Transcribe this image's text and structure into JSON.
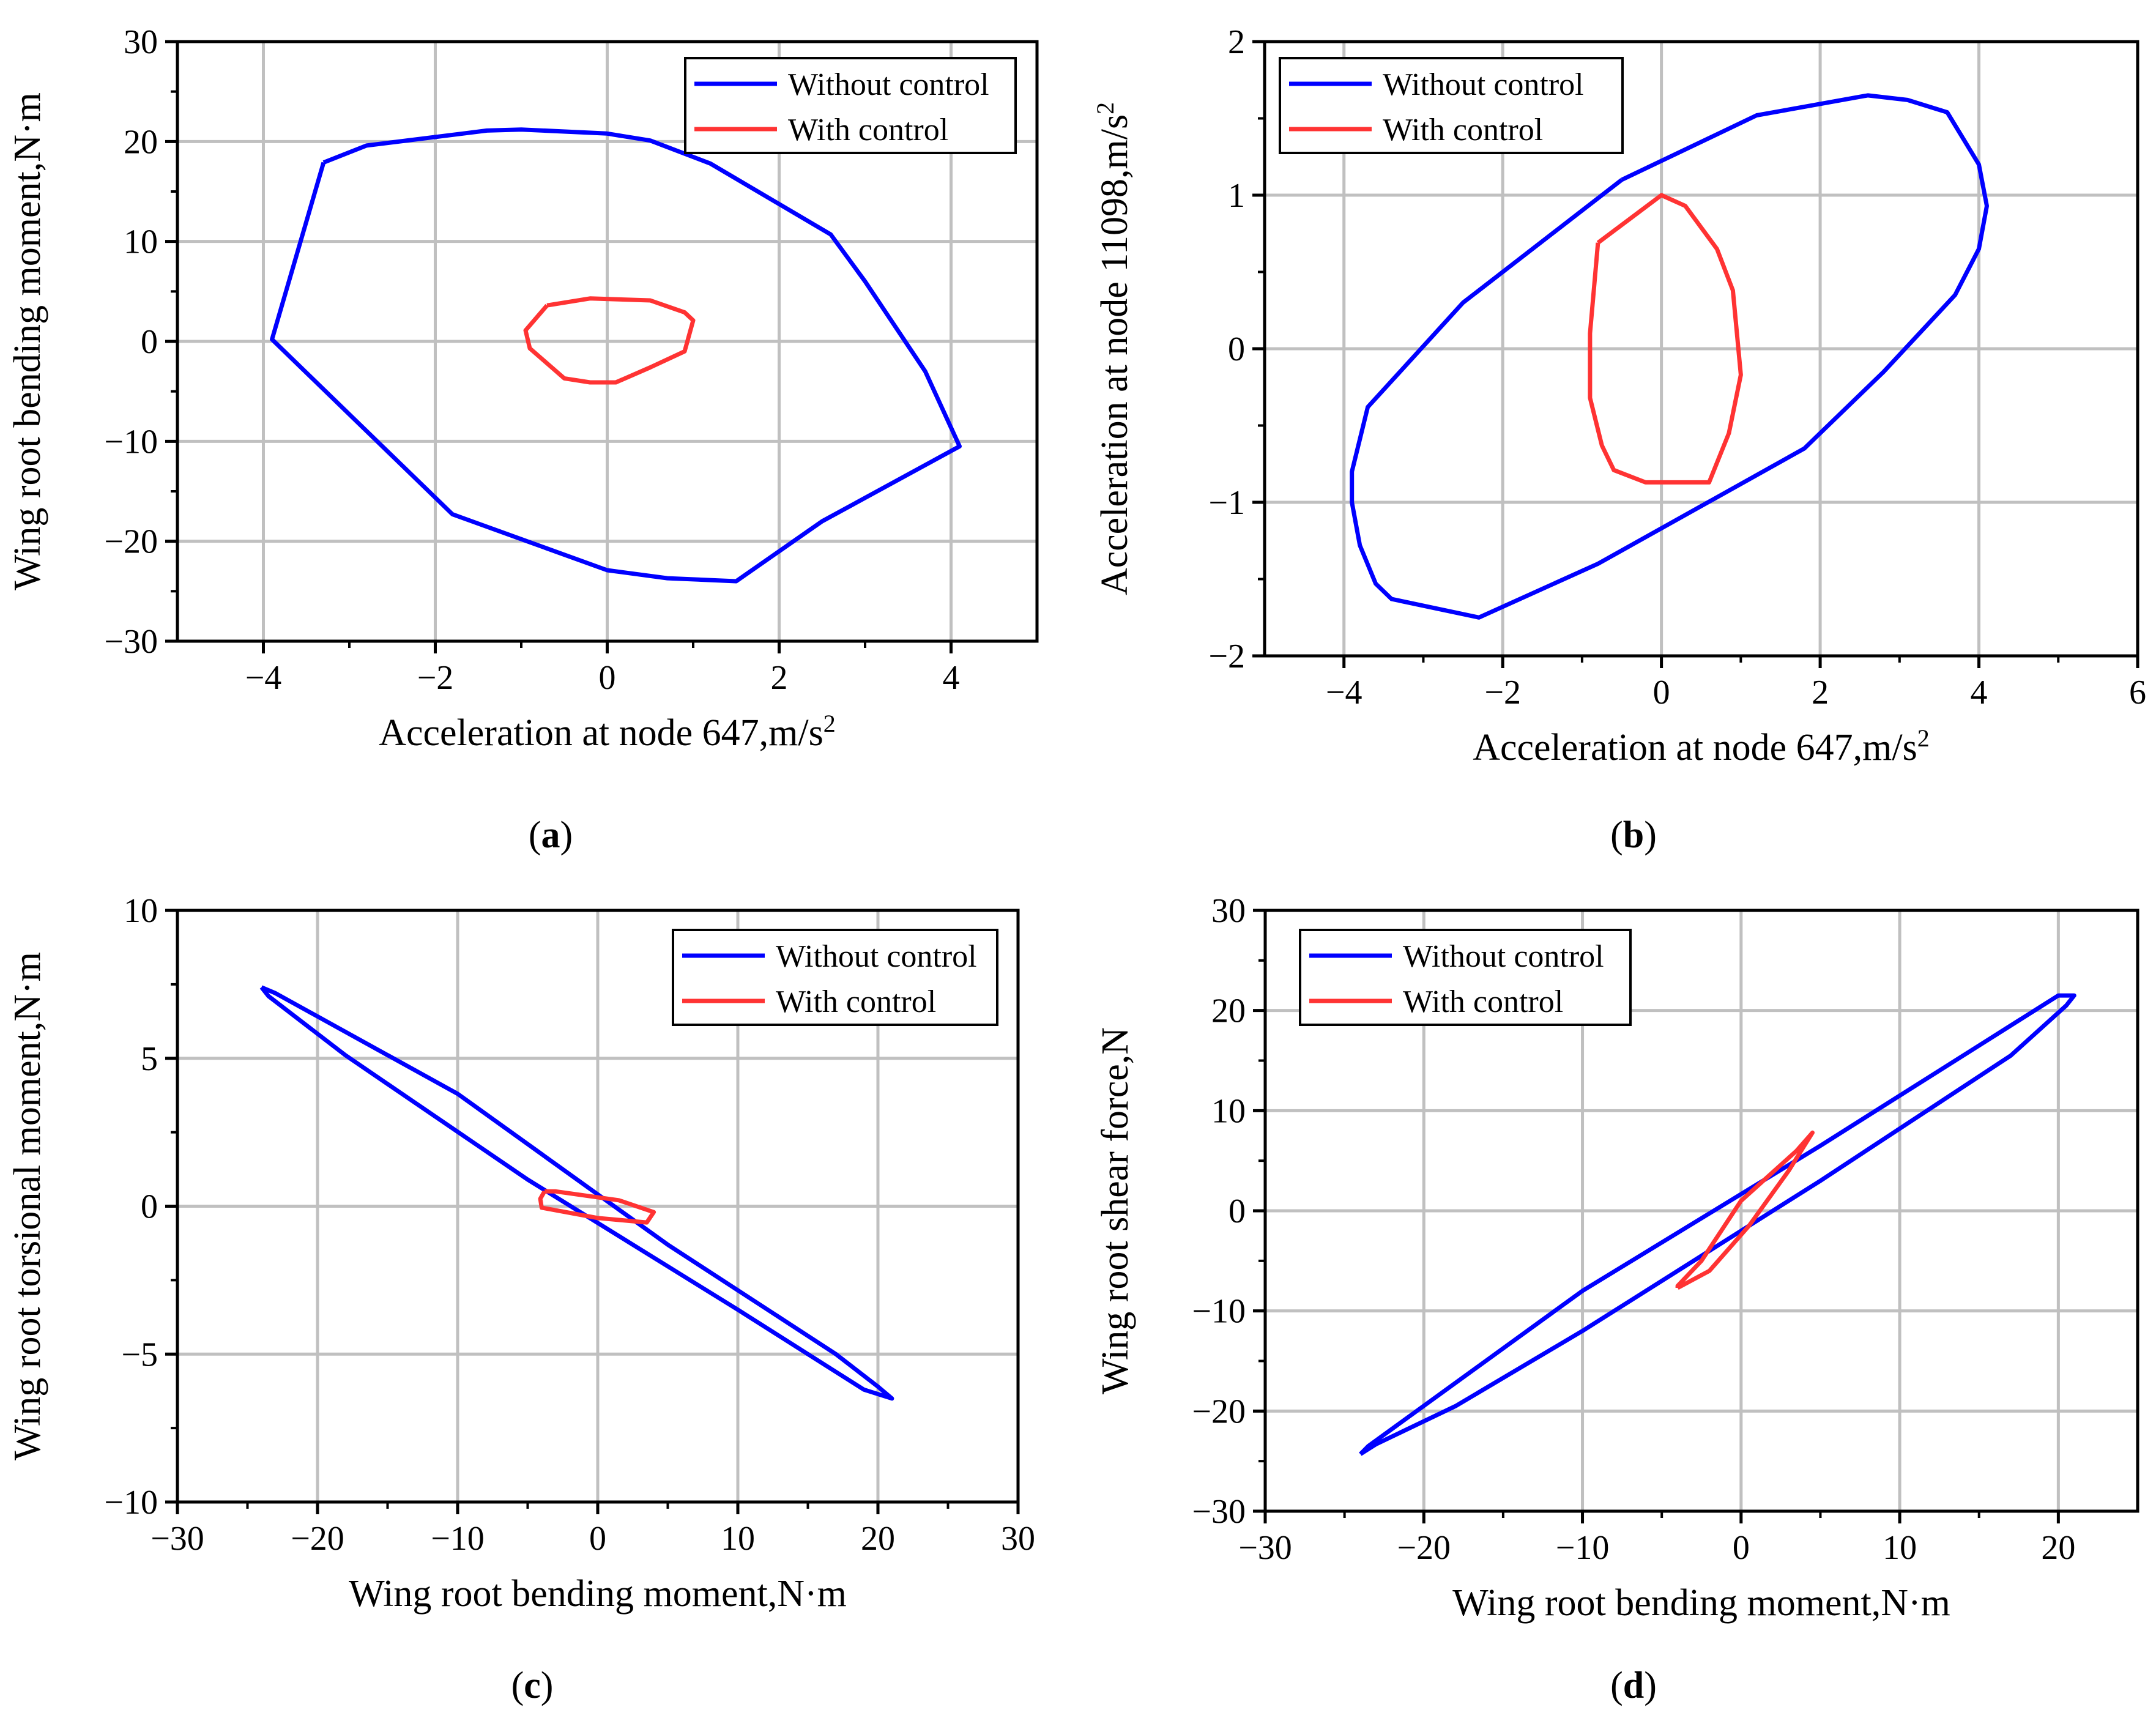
{
  "figure": {
    "panels": [
      "a",
      "b",
      "c",
      "d"
    ]
  },
  "chart_data": [
    {
      "id": "a",
      "type": "line",
      "caption": "a",
      "xlabel": "Acceleration at node 647,m/s",
      "xlabel_sup": "2",
      "ylabel": "Wing root bending moment,N·m",
      "xlim": [
        -5,
        5
      ],
      "ylim": [
        -30,
        30
      ],
      "xticks": [
        -4,
        -2,
        0,
        2,
        4
      ],
      "xtick_labels": [
        "−4",
        "−2",
        "0",
        "2",
        "4"
      ],
      "yticks": [
        -30,
        -20,
        -10,
        0,
        10,
        20,
        30
      ],
      "ytick_labels": [
        "−30",
        "−20",
        "−10",
        "0",
        "10",
        "20",
        "30"
      ],
      "legend_position": "top-right",
      "series": [
        {
          "name": "Without control",
          "color": "#0000ff",
          "x": [
            -3.3,
            -2.8,
            -1.4,
            -1.0,
            0.0,
            0.5,
            1.2,
            2.6,
            3.0,
            3.7,
            4.1,
            2.5,
            1.5,
            0.7,
            0.0,
            -1.8,
            -3.9,
            -3.3
          ],
          "y": [
            17.9,
            19.6,
            21.1,
            21.2,
            20.8,
            20.1,
            17.8,
            10.7,
            6.0,
            -3.0,
            -10.5,
            -18.0,
            -24.0,
            -23.7,
            -22.9,
            -17.3,
            0.2,
            17.9
          ]
        },
        {
          "name": "With control",
          "color": "#ff3333",
          "x": [
            -0.7,
            -0.2,
            0.5,
            0.9,
            1.0,
            0.9,
            0.5,
            0.1,
            -0.2,
            -0.5,
            -0.9,
            -0.95,
            -0.7
          ],
          "y": [
            3.6,
            4.3,
            4.1,
            2.9,
            2.1,
            -1.0,
            -2.6,
            -4.1,
            -4.1,
            -3.7,
            -0.7,
            1.1,
            3.6
          ]
        }
      ]
    },
    {
      "id": "b",
      "type": "line",
      "caption": "b",
      "xlabel": "Acceleration at node 647,m/s",
      "xlabel_sup": "2",
      "ylabel": "Acceleration at node 11098,m/s",
      "ylabel_sup": "2",
      "xlim": [
        -5,
        6
      ],
      "ylim": [
        -2,
        2
      ],
      "xticks": [
        -4,
        -2,
        0,
        2,
        4,
        6
      ],
      "xtick_labels": [
        "−4",
        "−2",
        "0",
        "2",
        "4",
        "6"
      ],
      "yticks": [
        -2,
        -1,
        0,
        1,
        2
      ],
      "ytick_labels": [
        "−2",
        "−1",
        "0",
        "1",
        "2"
      ],
      "legend_position": "top-left",
      "series": [
        {
          "name": "Without control",
          "color": "#0000ff",
          "x": [
            -0.5,
            1.2,
            2.6,
            3.1,
            3.6,
            4.0,
            4.1,
            4.0,
            3.7,
            2.8,
            1.8,
            -0.8,
            -2.3,
            -3.4,
            -3.6,
            -3.8,
            -3.9,
            -3.9,
            -3.7,
            -2.5,
            -0.5
          ],
          "y": [
            1.1,
            1.52,
            1.65,
            1.62,
            1.54,
            1.2,
            0.93,
            0.65,
            0.35,
            -0.15,
            -0.65,
            -1.4,
            -1.75,
            -1.63,
            -1.53,
            -1.28,
            -1.0,
            -0.8,
            -0.38,
            0.3,
            1.1
          ]
        },
        {
          "name": "With control",
          "color": "#ff3333",
          "x": [
            -0.8,
            0.0,
            0.3,
            0.7,
            0.9,
            1.0,
            0.85,
            0.6,
            0.3,
            -0.2,
            -0.6,
            -0.75,
            -0.9,
            -0.9,
            -0.8
          ],
          "y": [
            0.69,
            1.0,
            0.93,
            0.65,
            0.38,
            -0.17,
            -0.55,
            -0.87,
            -0.87,
            -0.87,
            -0.79,
            -0.63,
            -0.32,
            0.1,
            0.69
          ]
        }
      ]
    },
    {
      "id": "c",
      "type": "line",
      "caption": "c",
      "xlabel": "Wing root bending moment,N·m",
      "ylabel": "Wing root torsional moment,N·m",
      "xlim": [
        -30,
        30
      ],
      "ylim": [
        -10,
        10
      ],
      "xticks": [
        -30,
        -20,
        -10,
        0,
        10,
        20,
        30
      ],
      "xtick_labels": [
        "−30",
        "−20",
        "−10",
        "0",
        "10",
        "20",
        "30"
      ],
      "yticks": [
        -10,
        -5,
        0,
        5,
        10
      ],
      "ytick_labels": [
        "−10",
        "−5",
        "0",
        "5",
        "10"
      ],
      "legend_position": "top-right",
      "series": [
        {
          "name": "Without control",
          "color": "#0000ff",
          "x": [
            -24,
            -23,
            -10,
            5,
            17,
            20,
            21,
            19,
            17,
            10,
            -5,
            -18,
            -23.5,
            -24
          ],
          "y": [
            7.4,
            7.2,
            3.8,
            -1.3,
            -5.0,
            -6.1,
            -6.5,
            -6.2,
            -5.6,
            -3.5,
            0.9,
            5.1,
            7.1,
            7.4
          ]
        },
        {
          "name": "With control",
          "color": "#ff3333",
          "x": [
            -3.8,
            -3.0,
            1.5,
            4.0,
            3.5,
            0.0,
            -4.0,
            -4.1,
            -3.8
          ],
          "y": [
            0.5,
            0.5,
            0.2,
            -0.2,
            -0.55,
            -0.4,
            -0.05,
            0.25,
            0.5
          ]
        }
      ]
    },
    {
      "id": "d",
      "type": "line",
      "caption": "d",
      "xlabel": "Wing root bending moment,N·m",
      "ylabel": "Wing root shear force,N",
      "xlim": [
        -30,
        25
      ],
      "ylim": [
        -30,
        30
      ],
      "xticks": [
        -30,
        -20,
        -10,
        0,
        10,
        20
      ],
      "xtick_labels": [
        "−30",
        "−20",
        "−10",
        "0",
        "10",
        "20"
      ],
      "yticks": [
        -30,
        -20,
        -10,
        0,
        10,
        20,
        30
      ],
      "ytick_labels": [
        "−30",
        "−20",
        "−10",
        "0",
        "10",
        "20",
        "30"
      ],
      "legend_position": "top-left",
      "series": [
        {
          "name": "Without control",
          "color": "#0000ff",
          "x": [
            -24,
            -23.5,
            -10,
            5,
            15,
            20,
            21,
            20.5,
            17,
            5,
            -10,
            -18,
            -23,
            -24
          ],
          "y": [
            -24.3,
            -23.5,
            -8.0,
            6.5,
            16.5,
            21.5,
            21.5,
            20.5,
            15.5,
            3.0,
            -12.0,
            -19.5,
            -23.3,
            -24.3
          ]
        },
        {
          "name": "With control",
          "color": "#ff3333",
          "x": [
            -4.0,
            -2.0,
            0.5,
            3.0,
            4.5,
            3.5,
            0.0,
            -2.5,
            -4.0,
            -4.0
          ],
          "y": [
            -7.7,
            -6.0,
            -1.5,
            4.0,
            7.8,
            6.0,
            1.0,
            -5.0,
            -7.5,
            -7.7
          ]
        }
      ]
    }
  ]
}
